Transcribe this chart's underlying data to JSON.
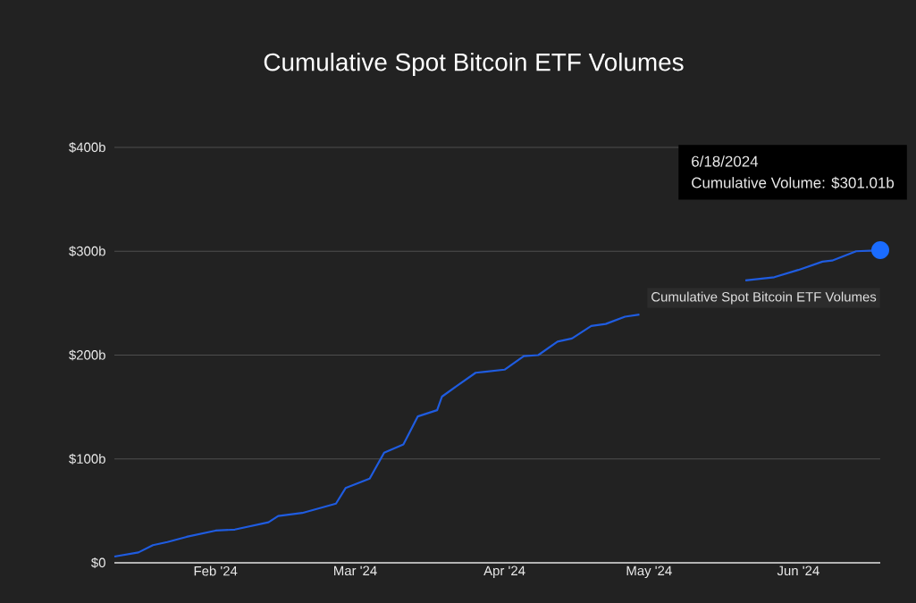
{
  "chart_data": {
    "type": "line",
    "title": "Cumulative Spot Bitcoin ETF Volumes",
    "x": [
      "2024-01-11",
      "2024-01-16",
      "2024-01-19",
      "2024-01-22",
      "2024-01-26",
      "2024-02-01",
      "2024-02-05",
      "2024-02-12",
      "2024-02-14",
      "2024-02-19",
      "2024-02-26",
      "2024-02-28",
      "2024-03-04",
      "2024-03-07",
      "2024-03-11",
      "2024-03-14",
      "2024-03-18",
      "2024-03-19",
      "2024-03-22",
      "2024-03-26",
      "2024-03-28",
      "2024-04-01",
      "2024-04-05",
      "2024-04-08",
      "2024-04-12",
      "2024-04-15",
      "2024-04-19",
      "2024-04-22",
      "2024-04-26",
      "2024-04-29",
      "2024-05-10",
      "2024-05-21",
      "2024-05-27",
      "2024-06-01",
      "2024-06-06",
      "2024-06-08",
      "2024-06-13",
      "2024-06-18"
    ],
    "series": [
      {
        "name": "Cumulative Spot Bitcoin ETF Volumes",
        "color": "#1f5ce0",
        "values": [
          6,
          10,
          17,
          20,
          25,
          31,
          32,
          39,
          45,
          48,
          57,
          72,
          81,
          106,
          114,
          141,
          147,
          160,
          170,
          183,
          184,
          186,
          199,
          200,
          213,
          216,
          228,
          230,
          237,
          239,
          null,
          272,
          275,
          282,
          290,
          291,
          300,
          301.01
        ]
      }
    ],
    "xlim": [
      "2024-01-11",
      "2024-06-18"
    ],
    "xticks": [
      {
        "value": "2024-02-01",
        "label": "Feb '24"
      },
      {
        "value": "2024-03-01",
        "label": "Mar '24"
      },
      {
        "value": "2024-04-01",
        "label": "Apr '24"
      },
      {
        "value": "2024-05-01",
        "label": "May '24"
      },
      {
        "value": "2024-06-01",
        "label": "Jun '24"
      }
    ],
    "ylim": [
      0,
      400
    ],
    "yticks": [
      {
        "value": 0,
        "label": "$0"
      },
      {
        "value": 100,
        "label": "$100b"
      },
      {
        "value": 200,
        "label": "$200b"
      },
      {
        "value": 300,
        "label": "$300b"
      },
      {
        "value": 400,
        "label": "$400b"
      }
    ],
    "grid": "y",
    "annotations": [
      "6/18/2024",
      "Cumulative Volume: $301.01b"
    ]
  }
}
